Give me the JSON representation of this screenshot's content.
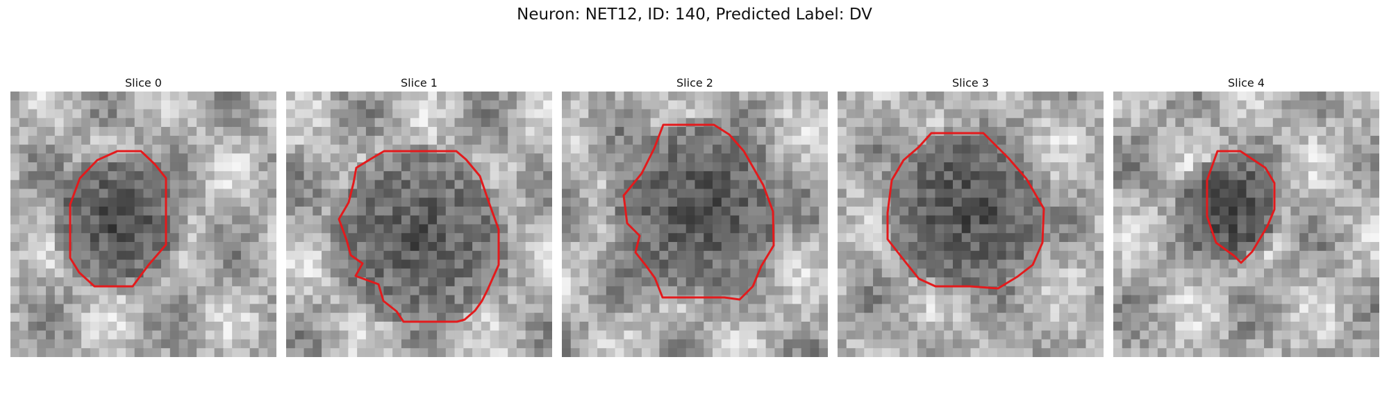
{
  "figure": {
    "title": "Neuron: NET12, ID: 140, Predicted Label: DV",
    "contour_color": "#e31a1c",
    "image_colormap": "gray"
  },
  "panels": [
    {
      "title": "Slice 0"
    },
    {
      "title": "Slice 1"
    },
    {
      "title": "Slice 2"
    },
    {
      "title": "Slice 3"
    },
    {
      "title": "Slice 4"
    }
  ]
}
